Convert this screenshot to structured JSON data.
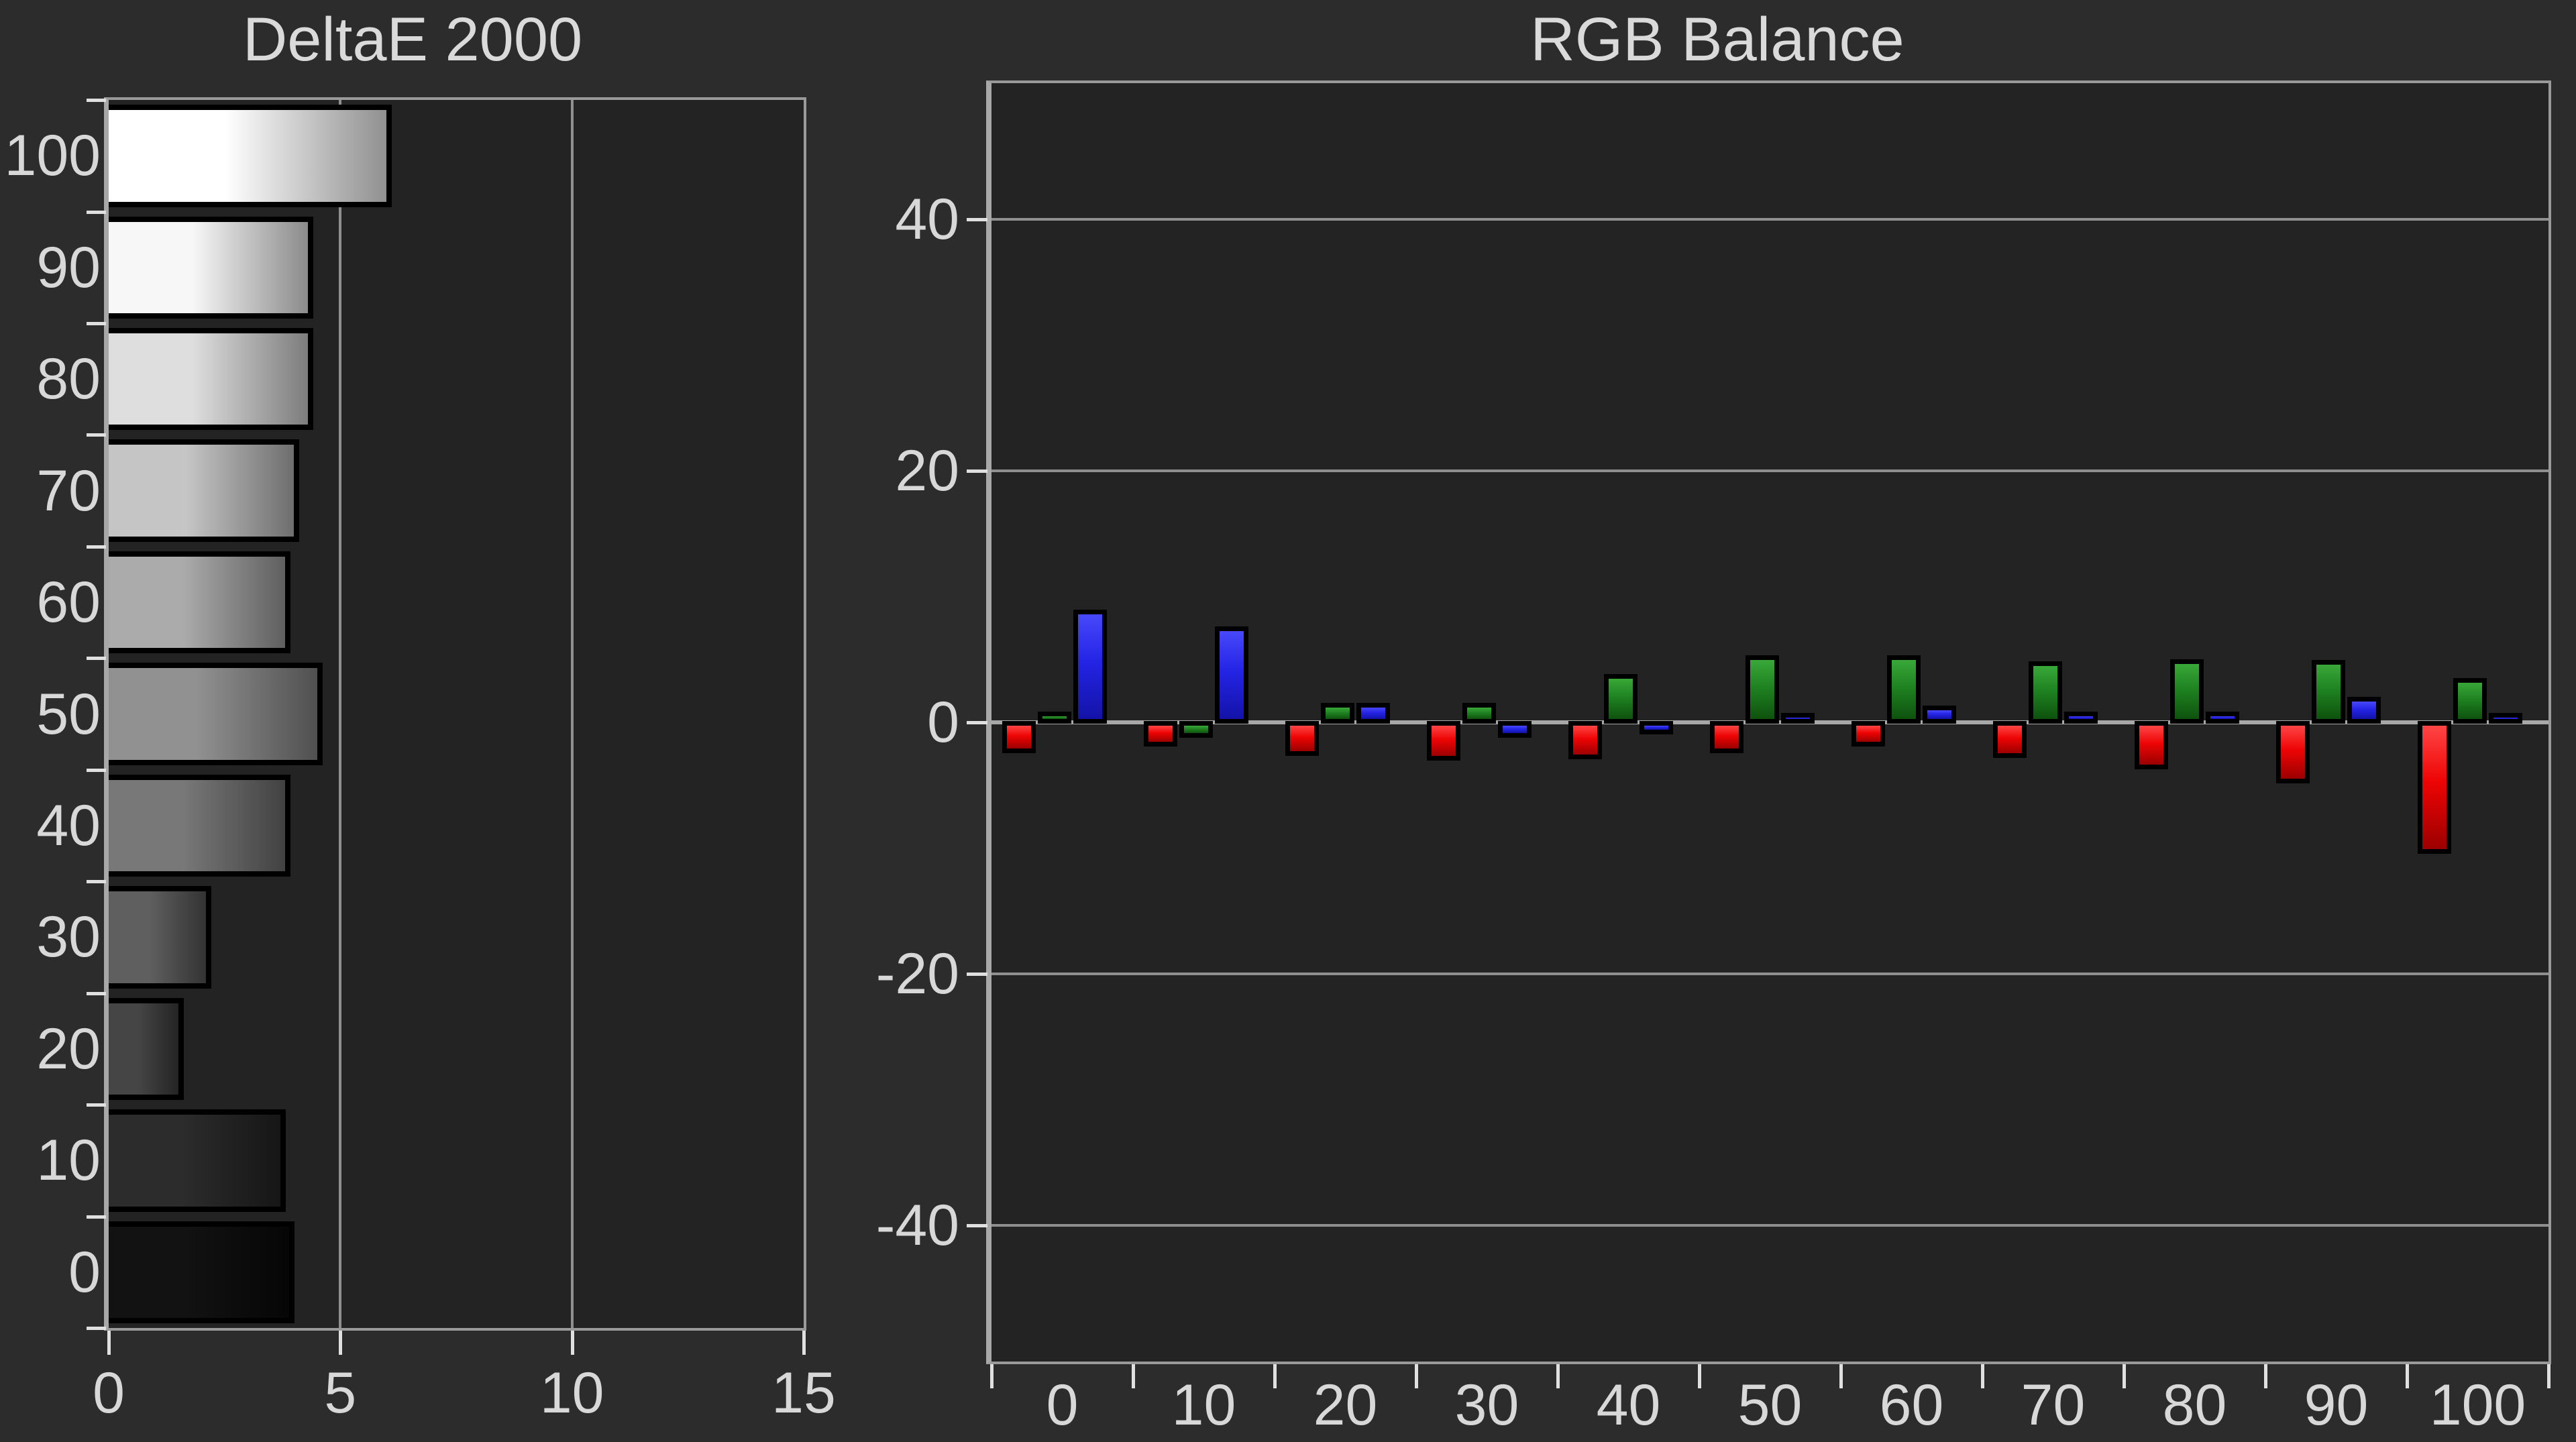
{
  "palette": {
    "background": "#2c2c2c",
    "plot_background": "#232323",
    "grid_line": "#8f8f8f",
    "plot_border": "#9a9a9a",
    "zero_line": "#a8a8a8",
    "tick": "#e0e0e0",
    "text": "#d8d8d8",
    "bar_border": "#000000",
    "red": "#e80000",
    "green": "#1e8220",
    "blue": "#2222e0"
  },
  "chart_data": [
    {
      "type": "bar",
      "orientation": "horizontal",
      "title": "DeltaE 2000",
      "categories": [
        100,
        90,
        80,
        70,
        60,
        50,
        40,
        30,
        20,
        10,
        0
      ],
      "values": [
        6.0,
        4.3,
        4.3,
        4.0,
        3.8,
        4.5,
        3.8,
        2.1,
        1.5,
        3.7,
        3.9
      ],
      "xlim": [
        0,
        15
      ],
      "x_ticks": [
        0,
        5,
        10,
        15
      ],
      "grid": true,
      "legend": "none",
      "bar_style": "grayscale-gradient-matches-level"
    },
    {
      "type": "bar",
      "orientation": "vertical",
      "title": "RGB Balance",
      "categories": [
        0,
        10,
        20,
        30,
        40,
        50,
        60,
        70,
        80,
        90,
        100
      ],
      "series": [
        {
          "name": "Red",
          "color": "#e80000",
          "values": [
            -1.8,
            -1.3,
            -2.0,
            -2.4,
            -2.3,
            -1.8,
            -1.3,
            -2.2,
            -3.1,
            -4.2,
            -9.8
          ]
        },
        {
          "name": "Green",
          "color": "#1e8220",
          "values": [
            0.2,
            -0.6,
            0.9,
            0.9,
            3.2,
            4.7,
            4.7,
            4.2,
            4.4,
            4.3,
            2.9
          ]
        },
        {
          "name": "Blue",
          "color": "#2222e0",
          "values": [
            8.3,
            7.0,
            0.9,
            -0.6,
            -0.3,
            0.1,
            0.7,
            0.2,
            0.2,
            1.4,
            0.1
          ]
        }
      ],
      "ylim": [
        -50.8,
        50.8
      ],
      "y_ticks": [
        40,
        20,
        0,
        -20,
        -40
      ],
      "grid": true,
      "legend": "none"
    }
  ]
}
